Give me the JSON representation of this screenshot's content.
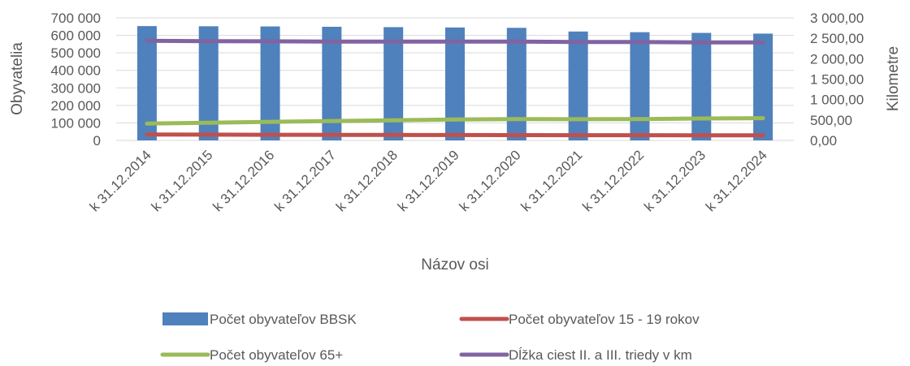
{
  "chart_data": {
    "type": "bar",
    "categories": [
      "k 31.12.2014",
      "k 31.12.2015",
      "k 31.12.2016",
      "k 31.12.2017",
      "k 31.12.2018",
      "k 31.12.2019",
      "k 31.12.2020",
      "k 31.12.2021",
      "k 31.12.2022",
      "k 31.12.2023",
      "k 31.12.2024"
    ],
    "xlabel": "Názov osi",
    "ylabel": "Obyvatelia",
    "y2label": "Kilometre",
    "ylim": [
      0,
      700000
    ],
    "y2lim": [
      0,
      3000
    ],
    "yticks": [
      "0",
      "100 000",
      "200 000",
      "300 000",
      "400 000",
      "500 000",
      "600 000",
      "700 000"
    ],
    "y2ticks": [
      "0,00",
      "500,00",
      "1 000,00",
      "1 500,00",
      "2 000,00",
      "2 500,00",
      "3 000,00"
    ],
    "grid": true,
    "legend_position": "bottom",
    "series": [
      {
        "name": "Počet obyvateľov BBSK",
        "type": "bar",
        "axis": "left",
        "color": "#4f81bd",
        "values": [
          653000,
          652000,
          651000,
          649000,
          647000,
          645000,
          643000,
          622000,
          618000,
          614000,
          610000
        ]
      },
      {
        "name": "Počet obyvateľov  15 - 19 rokov",
        "type": "line",
        "axis": "left",
        "color": "#c0504d",
        "values": [
          34000,
          33000,
          32000,
          31500,
          31000,
          30500,
          30000,
          29500,
          29500,
          29000,
          29000
        ]
      },
      {
        "name": "Počet obyvateľov  65+",
        "type": "line",
        "axis": "left",
        "color": "#9bbb59",
        "values": [
          96000,
          101000,
          106000,
          111000,
          115000,
          119000,
          122000,
          121000,
          122000,
          125000,
          127000
        ]
      },
      {
        "name": "Dĺžka ciest II. a III. triedy v km",
        "type": "line",
        "axis": "right",
        "color": "#8064a2",
        "values": [
          2440,
          2430,
          2425,
          2420,
          2420,
          2420,
          2420,
          2410,
          2410,
          2400,
          2400
        ]
      }
    ]
  }
}
